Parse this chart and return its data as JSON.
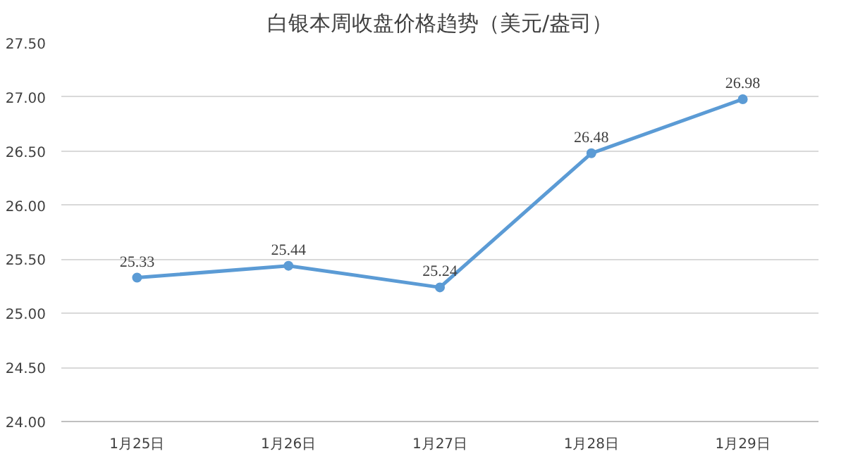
{
  "chart_data": {
    "type": "line",
    "title": "白银本周收盘价格趋势（美元/盎司）",
    "categories": [
      "1月25日",
      "1月26日",
      "1月27日",
      "1月28日",
      "1月29日"
    ],
    "values": [
      25.33,
      25.44,
      25.24,
      26.48,
      26.98
    ],
    "color": "#5b9bd5",
    "ylim": [
      24,
      27.5
    ],
    "yticks": [
      {
        "value": 24,
        "label": "24.00"
      },
      {
        "value": 24.5,
        "label": "24.50"
      },
      {
        "value": 25,
        "label": "25.00"
      },
      {
        "value": 25.5,
        "label": "25.50"
      },
      {
        "value": 26,
        "label": "26.00"
      },
      {
        "value": 26.5,
        "label": "26.50"
      },
      {
        "value": 27,
        "label": "27.00"
      },
      {
        "value": 27.5,
        "label": "27.50"
      }
    ],
    "grid": "y",
    "marker": "circle",
    "line_style": "solid",
    "data_labels": true
  }
}
